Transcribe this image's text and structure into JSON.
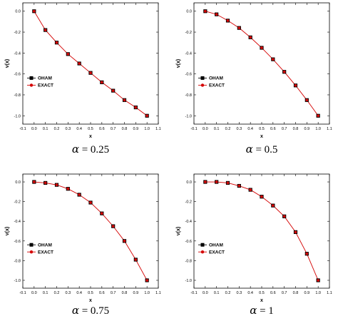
{
  "chart_data": [
    {
      "type": "line",
      "caption": {
        "symbol": "α",
        "text": " = 0.25"
      },
      "xlabel": "x",
      "ylabel": "v(x)",
      "xlim": [
        -0.1,
        1.1
      ],
      "ylim": [
        -1.08,
        0.08
      ],
      "xticks": [
        "-0.1",
        "0.0",
        "0.1",
        "0.2",
        "0.3",
        "0.4",
        "0.5",
        "0.6",
        "0.7",
        "0.8",
        "0.9",
        "1.0",
        "1.1"
      ],
      "yticks": [
        "0.0",
        "-0.2",
        "-0.4",
        "-0.6",
        "-0.8",
        "-1.0"
      ],
      "legend_position": "lower-left",
      "grid": false,
      "x": [
        0.0,
        0.1,
        0.2,
        0.3,
        0.4,
        0.5,
        0.6,
        0.7,
        0.8,
        0.9,
        1.0
      ],
      "series": [
        {
          "name": "OHAM",
          "marker": "square",
          "color": "#000000",
          "values": [
            0.0,
            -0.18,
            -0.3,
            -0.41,
            -0.5,
            -0.59,
            -0.68,
            -0.76,
            -0.85,
            -0.92,
            -1.0
          ]
        },
        {
          "name": "EXACT",
          "marker": "circle",
          "color": "#d40000",
          "values": [
            0.0,
            -0.18,
            -0.3,
            -0.41,
            -0.5,
            -0.59,
            -0.68,
            -0.76,
            -0.85,
            -0.92,
            -1.0
          ]
        }
      ]
    },
    {
      "type": "line",
      "caption": {
        "symbol": "α",
        "text": " = 0.5"
      },
      "xlabel": "x",
      "ylabel": "v(x)",
      "xlim": [
        -0.1,
        1.1
      ],
      "ylim": [
        -1.08,
        0.08
      ],
      "xticks": [
        "-0.1",
        "0.0",
        "0.1",
        "0.2",
        "0.3",
        "0.4",
        "0.5",
        "0.6",
        "0.7",
        "0.8",
        "0.9",
        "1.0",
        "1.1"
      ],
      "yticks": [
        "0.0",
        "-0.2",
        "-0.4",
        "-0.6",
        "-0.8",
        "-1.0"
      ],
      "legend_position": "lower-left",
      "grid": false,
      "x": [
        0.0,
        0.1,
        0.2,
        0.3,
        0.4,
        0.5,
        0.6,
        0.7,
        0.8,
        0.9,
        1.0
      ],
      "series": [
        {
          "name": "OHAM",
          "marker": "square",
          "color": "#000000",
          "values": [
            0.0,
            -0.03,
            -0.09,
            -0.16,
            -0.25,
            -0.35,
            -0.46,
            -0.58,
            -0.71,
            -0.85,
            -1.0
          ]
        },
        {
          "name": "EXACT",
          "marker": "circle",
          "color": "#d40000",
          "values": [
            0.0,
            -0.03,
            -0.09,
            -0.16,
            -0.25,
            -0.35,
            -0.46,
            -0.58,
            -0.71,
            -0.85,
            -1.0
          ]
        }
      ]
    },
    {
      "type": "line",
      "caption": {
        "symbol": "α",
        "text": " = 0.75"
      },
      "xlabel": "x",
      "ylabel": "v(x)",
      "xlim": [
        -0.1,
        1.1
      ],
      "ylim": [
        -1.08,
        0.08
      ],
      "xticks": [
        "-0.1",
        "0.0",
        "0.1",
        "0.2",
        "0.3",
        "0.4",
        "0.5",
        "0.6",
        "0.7",
        "0.8",
        "0.9",
        "1.0",
        "1.1"
      ],
      "yticks": [
        "0.0",
        "-0.2",
        "-0.4",
        "-0.6",
        "-0.8",
        "-1.0"
      ],
      "legend_position": "lower-left",
      "grid": false,
      "x": [
        0.0,
        0.1,
        0.2,
        0.3,
        0.4,
        0.5,
        0.6,
        0.7,
        0.8,
        0.9,
        1.0
      ],
      "series": [
        {
          "name": "OHAM",
          "marker": "square",
          "color": "#000000",
          "values": [
            0.0,
            -0.01,
            -0.03,
            -0.07,
            -0.13,
            -0.21,
            -0.32,
            -0.45,
            -0.6,
            -0.79,
            -1.0
          ]
        },
        {
          "name": "EXACT",
          "marker": "circle",
          "color": "#d40000",
          "values": [
            0.0,
            -0.01,
            -0.03,
            -0.07,
            -0.13,
            -0.21,
            -0.32,
            -0.45,
            -0.6,
            -0.79,
            -1.0
          ]
        }
      ]
    },
    {
      "type": "line",
      "caption": {
        "symbol": "α",
        "text": " = 1"
      },
      "xlabel": "x",
      "ylabel": "v(x)",
      "xlim": [
        -0.1,
        1.1
      ],
      "ylim": [
        -1.08,
        0.08
      ],
      "xticks": [
        "-0.1",
        "0.0",
        "0.1",
        "0.2",
        "0.3",
        "0.4",
        "0.5",
        "0.6",
        "0.7",
        "0.8",
        "0.9",
        "1.0",
        "1.1"
      ],
      "yticks": [
        "0.0",
        "-0.2",
        "-0.4",
        "-0.6",
        "-0.8",
        "-1.0"
      ],
      "legend_position": "lower-left",
      "grid": false,
      "x": [
        0.0,
        0.1,
        0.2,
        0.3,
        0.4,
        0.5,
        0.6,
        0.7,
        0.8,
        0.9,
        1.0
      ],
      "series": [
        {
          "name": "OHAM",
          "marker": "square",
          "color": "#000000",
          "values": [
            0.0,
            0.0,
            -0.01,
            -0.04,
            -0.08,
            -0.15,
            -0.24,
            -0.35,
            -0.51,
            -0.73,
            -1.0
          ]
        },
        {
          "name": "EXACT",
          "marker": "circle",
          "color": "#d40000",
          "values": [
            0.0,
            0.0,
            -0.01,
            -0.04,
            -0.08,
            -0.15,
            -0.24,
            -0.35,
            -0.51,
            -0.73,
            -1.0
          ]
        }
      ]
    }
  ]
}
